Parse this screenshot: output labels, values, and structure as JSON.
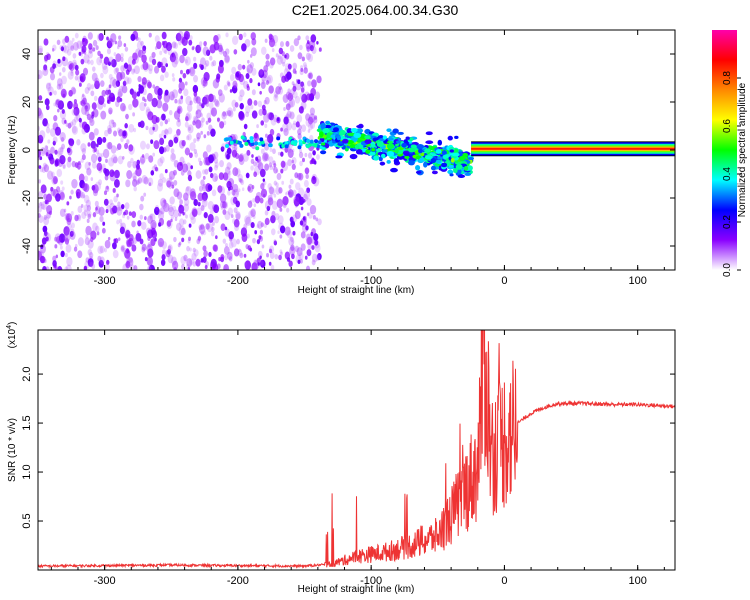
{
  "title": "C2E1.2025.064.00.34.G30",
  "chart_data": [
    {
      "type": "heatmap",
      "xlabel": "Height of straight line (km)",
      "ylabel": "Frequency (Hz)",
      "xlim": [
        -350,
        128
      ],
      "ylim": [
        -50,
        50
      ],
      "xticks": [
        -300,
        -200,
        -100,
        0,
        100
      ],
      "yticks": [
        -40,
        -20,
        0,
        20,
        40
      ],
      "colorbar": {
        "label": "Normalized spectral amplitude",
        "range": [
          0,
          1
        ],
        "ticks": [
          "0.0",
          "0.2",
          "0.4",
          "0.6",
          "0.8"
        ],
        "colors": [
          "#ffffff",
          "#8a00ff",
          "#0000ff",
          "#00ffff",
          "#00ff00",
          "#ffff00",
          "#ff8800",
          "#ff0000",
          "#ff00aa"
        ]
      },
      "regions": [
        {
          "name": "broadband noise",
          "x_range": [
            -350,
            -138
          ],
          "freq_range": [
            -50,
            48
          ],
          "amplitude_range": [
            0.0,
            0.25
          ]
        },
        {
          "name": "scintillating tone",
          "x_range": [
            -138,
            -25
          ],
          "center_freq_start": 6,
          "center_freq_end": -5,
          "spread_hz": 8,
          "amplitude_range": [
            0.2,
            0.6
          ]
        },
        {
          "name": "steady carrier",
          "x_range": [
            -25,
            128
          ],
          "center_freq": 0.5,
          "amplitude": 0.85
        }
      ]
    },
    {
      "type": "line",
      "xlabel": "Height of straight line (km)",
      "ylabel": "SNR (10 * v/v)",
      "y_multiplier": "(x10^4)",
      "y_multiplier_base": "(x10",
      "y_multiplier_exp": "4",
      "xlim": [
        -350,
        128
      ],
      "ylim": [
        0,
        2.45
      ],
      "xticks": [
        -300,
        -200,
        -100,
        0,
        100
      ],
      "yticks": [
        "0.5",
        "1.0",
        "1.5",
        "2.0"
      ],
      "line_color": "#ee3333",
      "series": [
        {
          "name": "SNR",
          "x": [
            -350,
            -250,
            -150,
            -130,
            -110,
            -90,
            -70,
            -50,
            -40,
            -30,
            -20,
            -15,
            -10,
            0,
            10,
            20,
            30,
            40,
            60,
            80,
            100,
            128
          ],
          "y": [
            0.04,
            0.05,
            0.04,
            0.06,
            0.14,
            0.18,
            0.25,
            0.35,
            0.55,
            0.8,
            1.05,
            2.3,
            1.2,
            1.35,
            1.5,
            1.6,
            1.66,
            1.7,
            1.7,
            1.69,
            1.69,
            1.67
          ]
        }
      ]
    }
  ]
}
